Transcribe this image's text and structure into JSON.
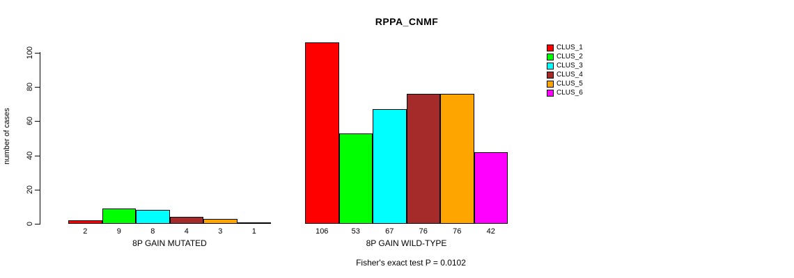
{
  "title": "RPPA_CNMF",
  "y_axis": {
    "label": "number of cases",
    "ticks": [
      0,
      20,
      40,
      60,
      80,
      100
    ]
  },
  "footer": "Fisher's exact test P = 0.0102",
  "legend": [
    {
      "label": "CLUS_1",
      "color": "#FF0000"
    },
    {
      "label": "CLUS_2",
      "color": "#00FF00"
    },
    {
      "label": "CLUS_3",
      "color": "#00FFFF"
    },
    {
      "label": "CLUS_4",
      "color": "#A52A2A"
    },
    {
      "label": "CLUS_5",
      "color": "#FFA500"
    },
    {
      "label": "CLUS_6",
      "color": "#FF00FF"
    }
  ],
  "chart_data": {
    "type": "bar",
    "title": "RPPA_CNMF",
    "ylabel": "number of cases",
    "ylim": [
      0,
      100
    ],
    "yticks": [
      0,
      20,
      40,
      60,
      80,
      100
    ],
    "grid": false,
    "legend_position": "right",
    "series_names": [
      "CLUS_1",
      "CLUS_2",
      "CLUS_3",
      "CLUS_4",
      "CLUS_5",
      "CLUS_6"
    ],
    "series_colors": [
      "#FF0000",
      "#00FF00",
      "#00FFFF",
      "#A52A2A",
      "#FFA500",
      "#FF00FF"
    ],
    "groups": [
      {
        "label": "8P GAIN MUTATED",
        "values": [
          2,
          9,
          8,
          4,
          3,
          1
        ]
      },
      {
        "label": "8P GAIN WILD-TYPE",
        "values": [
          106,
          53,
          67,
          76,
          76,
          42
        ]
      }
    ],
    "annotation": "Fisher's exact test P = 0.0102"
  }
}
